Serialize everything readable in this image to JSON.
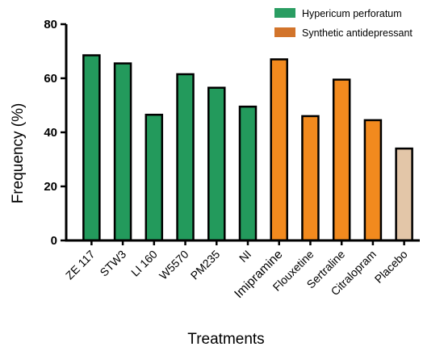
{
  "chart_data": {
    "type": "bar",
    "xlabel": "Treatments",
    "ylabel": "Frequency (%)",
    "ylim": [
      0,
      80
    ],
    "yticks": [
      "0",
      "20",
      "40",
      "60",
      "80"
    ],
    "grid": false,
    "legend_position": "top-right",
    "categories": [
      "ZE 117",
      "STW3",
      "LI 160",
      "W5570",
      "PM235",
      "NI",
      "Imipramine",
      "Flouxetine",
      "Sertraline",
      "Citralopram",
      "Placebo"
    ],
    "values": [
      68.5,
      65.5,
      46.5,
      61.5,
      56.5,
      49.5,
      67,
      46,
      59.5,
      44.5,
      34
    ],
    "groups": [
      "hypericum",
      "hypericum",
      "hypericum",
      "hypericum",
      "hypericum",
      "hypericum",
      "synthetic",
      "synthetic",
      "synthetic",
      "synthetic",
      "placebo"
    ],
    "legend": [
      {
        "key": "hypericum",
        "label": "Hypericum perforatum",
        "color": "#2a9d62"
      },
      {
        "key": "synthetic",
        "label": "Synthetic antidepressant",
        "color": "#d2742b"
      }
    ],
    "colors": {
      "hypericum": "#239a5c",
      "synthetic": "#f28a1e",
      "placebo": "#e3c6a8"
    }
  }
}
